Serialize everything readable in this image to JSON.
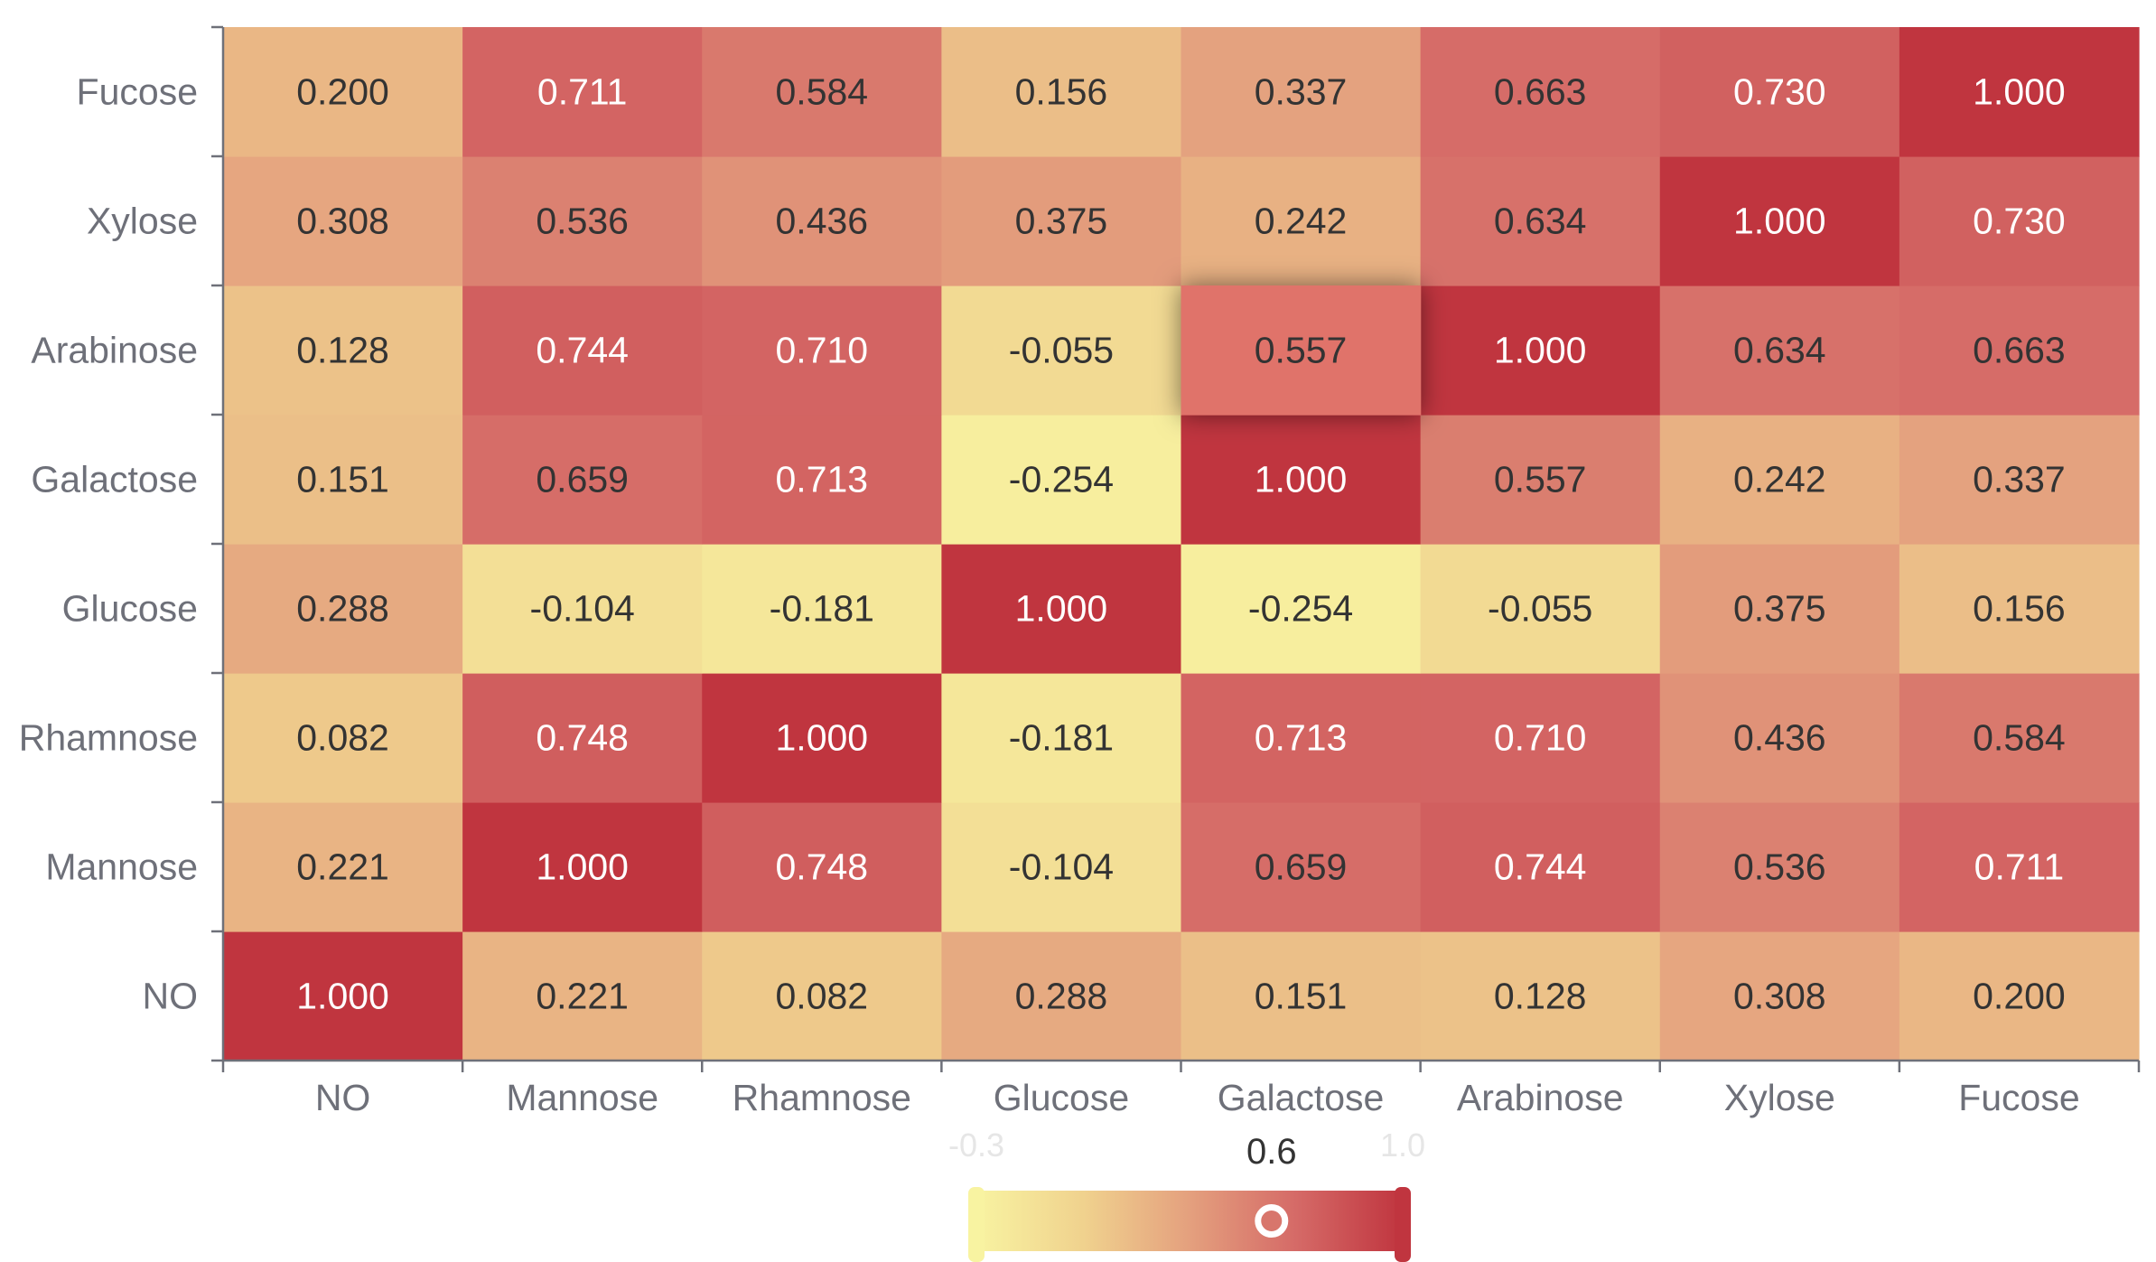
{
  "chart_data": {
    "type": "heatmap",
    "title": "",
    "xlabel": "",
    "ylabel": "",
    "x_categories": [
      "NO",
      "Mannose",
      "Rhamnose",
      "Glucose",
      "Galactose",
      "Arabinose",
      "Xylose",
      "Fucose"
    ],
    "y_categories": [
      "NO",
      "Mannose",
      "Rhamnose",
      "Glucose",
      "Galactose",
      "Arabinose",
      "Xylose",
      "Fucose"
    ],
    "values": [
      [
        1.0,
        0.221,
        0.082,
        0.288,
        0.151,
        0.128,
        0.308,
        0.2
      ],
      [
        0.221,
        1.0,
        0.748,
        -0.104,
        0.659,
        0.744,
        0.536,
        0.711
      ],
      [
        0.082,
        0.748,
        1.0,
        -0.181,
        0.713,
        0.71,
        0.436,
        0.584
      ],
      [
        0.288,
        -0.104,
        -0.181,
        1.0,
        -0.254,
        -0.055,
        0.375,
        0.156
      ],
      [
        0.151,
        0.659,
        0.713,
        -0.254,
        1.0,
        0.557,
        0.242,
        0.337
      ],
      [
        0.128,
        0.744,
        0.71,
        -0.055,
        0.557,
        1.0,
        0.634,
        0.663
      ],
      [
        0.308,
        0.536,
        0.436,
        0.375,
        0.242,
        0.634,
        1.0,
        0.73
      ],
      [
        0.2,
        0.711,
        0.584,
        0.156,
        0.337,
        0.663,
        0.73,
        1.0
      ]
    ],
    "highlighted_cell": {
      "x": "Galactose",
      "y": "Arabinose"
    },
    "visual_map": {
      "min": -0.3,
      "max": 1.0,
      "min_label": "-0.3",
      "max_label": "1.0",
      "handle_value": 0.6,
      "handle_label": "0.6",
      "colors": [
        "#f8f3a1",
        "#f0d28e",
        "#e4a07e",
        "#d56a67",
        "#c0353f"
      ]
    },
    "colors": {
      "axis_line": "#6e7079",
      "axis_text": "#6e7079",
      "label_dark": "#333333",
      "label_light": "#ffffff"
    }
  }
}
